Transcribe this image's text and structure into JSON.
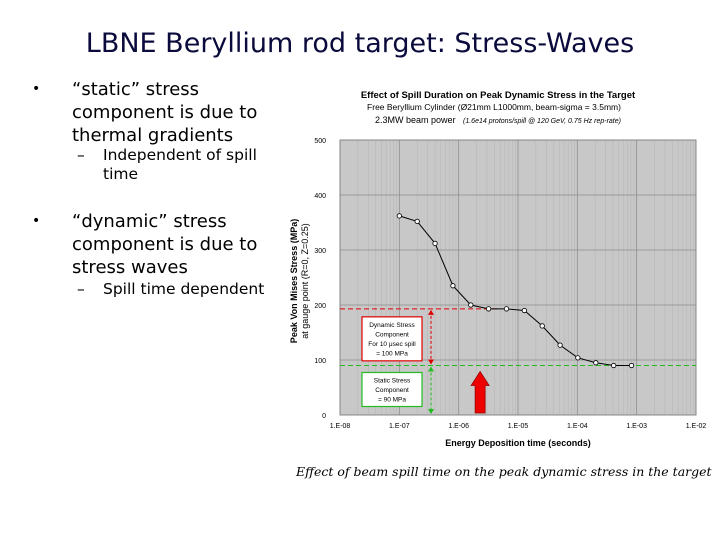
{
  "slide": {
    "title": "LBNE Beryllium rod target: Stress-Waves",
    "bullets": [
      {
        "lines": [
          "“static” stress",
          "component is due to",
          "thermal gradients"
        ],
        "sub": [
          "Independent of spill",
          "time"
        ]
      },
      {
        "lines": [
          "“dynamic” stress",
          "component is due to",
          "stress waves"
        ],
        "sub": [
          "Spill time dependent"
        ]
      }
    ],
    "caption": "Effect of beam spill time on the peak dynamic stress in the target"
  },
  "chart_data": {
    "type": "line",
    "title": "Effect of Spill Duration on Peak Dynamic Stress in the Target",
    "subtitle_1": "Free Beryllium Cylinder (Ø21mm L1000mm, beam-sigma = 3.5mm)",
    "subtitle_2a": "2.3MW beam power",
    "subtitle_2b": "(1.6e14 protons/spill @ 120 GeV, 0.75 Hz rep-rate)",
    "xlabel": "Energy Deposition time (seconds)",
    "ylabel_1": "Peak Von Mises Stress (MPa)",
    "ylabel_2": "at gauge point (R=0, Z=0.25)",
    "x_scale": "log",
    "x_ticks": [
      1e-08,
      1e-07,
      1e-06,
      1e-05,
      0.0001,
      0.001,
      0.01
    ],
    "x_tick_labels": [
      "1.E-08",
      "1.E-07",
      "1.E-06",
      "1.E-05",
      "1.E-04",
      "1.E-03",
      "1.E-02"
    ],
    "y_ticks": [
      0,
      100,
      200,
      300,
      400,
      500
    ],
    "y_tick_labels": [
      "0",
      "100",
      "200",
      "300",
      "400",
      "500"
    ],
    "xlim": [
      1e-08,
      0.01
    ],
    "ylim": [
      0,
      500
    ],
    "grid": true,
    "series": [
      {
        "x": [
          1e-07,
          2e-07,
          4e-07,
          8e-07,
          1.6e-06,
          3.2e-06,
          6.4e-06,
          1.28e-05,
          2.56e-05,
          5.12e-05,
          0.000102,
          0.000205,
          0.00041,
          0.00082
        ],
        "values": [
          362,
          352,
          312,
          235,
          200,
          193,
          193,
          190,
          162,
          127,
          104,
          95,
          90,
          90
        ]
      }
    ],
    "reference_lines": {
      "dynamic_level": 193,
      "static_level": 90
    },
    "arrow_at_x": 2.3e-06,
    "annotations": {
      "dynamic": [
        "Dynamic Stress",
        "Component",
        "For 10 μsec spill",
        "= 100 MPa"
      ],
      "static": [
        "Static Stress",
        "Component",
        "= 90 MPa"
      ]
    },
    "colors": {
      "plot_bg": "#c8c8c8",
      "line": "#000000",
      "marker_fill": "#ffffff",
      "dynamic": "#dd0000",
      "static": "#22bb22",
      "arrow": "#ee0000"
    }
  }
}
